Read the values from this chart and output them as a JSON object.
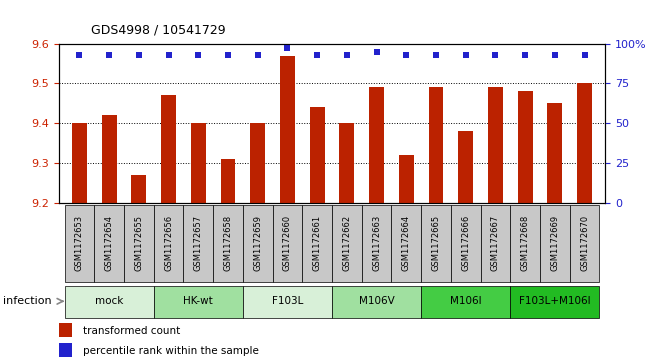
{
  "title": "GDS4998 / 10541729",
  "samples": [
    "GSM1172653",
    "GSM1172654",
    "GSM1172655",
    "GSM1172656",
    "GSM1172657",
    "GSM1172658",
    "GSM1172659",
    "GSM1172660",
    "GSM1172661",
    "GSM1172662",
    "GSM1172663",
    "GSM1172664",
    "GSM1172665",
    "GSM1172666",
    "GSM1172667",
    "GSM1172668",
    "GSM1172669",
    "GSM1172670"
  ],
  "bar_values": [
    9.4,
    9.42,
    9.27,
    9.47,
    9.4,
    9.31,
    9.4,
    9.57,
    9.44,
    9.4,
    9.49,
    9.32,
    9.49,
    9.38,
    9.49,
    9.48,
    9.45,
    9.5
  ],
  "percentile_values": [
    93,
    93,
    93,
    93,
    93,
    93,
    93,
    97,
    93,
    93,
    95,
    93,
    93,
    93,
    93,
    93,
    93,
    93
  ],
  "ylim_left": [
    9.2,
    9.6
  ],
  "ylim_right": [
    0,
    100
  ],
  "yticks_left": [
    9.2,
    9.3,
    9.4,
    9.5,
    9.6
  ],
  "yticks_right": [
    0,
    25,
    50,
    75,
    100
  ],
  "bar_color": "#bb2200",
  "dot_color": "#2222cc",
  "groups": [
    {
      "label": "mock",
      "start": 0,
      "end": 2,
      "color": "#d8f0d8"
    },
    {
      "label": "HK-wt",
      "start": 3,
      "end": 5,
      "color": "#a0e0a0"
    },
    {
      "label": "F103L",
      "start": 6,
      "end": 8,
      "color": "#d8f0d8"
    },
    {
      "label": "M106V",
      "start": 9,
      "end": 11,
      "color": "#a0e0a0"
    },
    {
      "label": "M106I",
      "start": 12,
      "end": 14,
      "color": "#44cc44"
    },
    {
      "label": "F103L+M106I",
      "start": 15,
      "end": 17,
      "color": "#22bb22"
    }
  ],
  "sample_box_color": "#c8c8c8",
  "infection_label": "infection",
  "legend_bar_label": "transformed count",
  "legend_dot_label": "percentile rank within the sample",
  "left_tick_color": "#cc2200",
  "right_tick_color": "#2222cc"
}
